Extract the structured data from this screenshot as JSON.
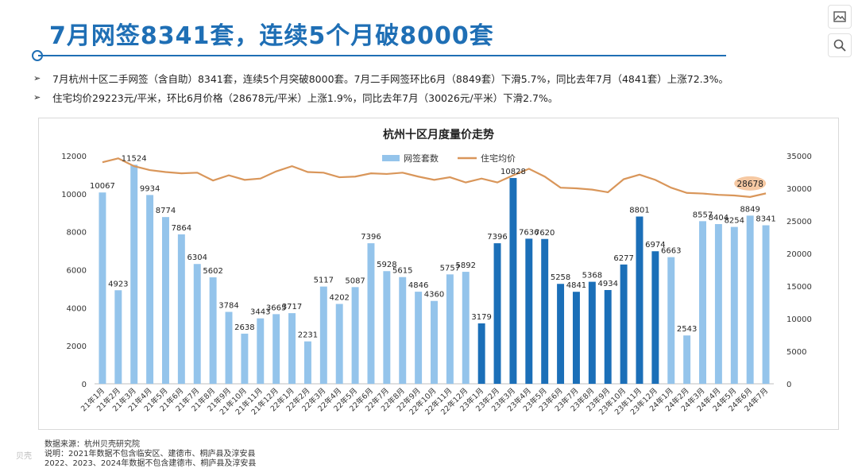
{
  "header": {
    "title": "7月网签8341套，连续5个月破8000套"
  },
  "bullets": [
    "7月杭州十区二手网签（含自助）8341套，连续5个月突破8000套。7月二手网签环比6月（8849套）下滑5.7%，同比去年7月（4841套）上涨72.3%。",
    "住宅均价29223元/平米，环比6月价格（28678元/平米）上涨1.9%，同比去年7月（30026元/平米）下滑2.7%。"
  ],
  "bullet_marker": "➢",
  "footer": {
    "source": "数据来源：杭州贝壳研究院",
    "note1": "说明：2021年数据不包含临安区、建德市、桐庐县及淳安县",
    "note2": "2022、2023、2024年数据不包含建德市、桐庐县及淳安县"
  },
  "watermark": "贝壳",
  "tools": [
    "image-icon",
    "search-icon"
  ],
  "colors": {
    "title": "#1f6fb5",
    "bar_light": "#94c4eb",
    "bar_dark": "#1b6fb8",
    "line": "#d9965a",
    "highlight": "#f6c9a3"
  },
  "chart_data": {
    "type": "bar",
    "title": "杭州十区月度量价走势",
    "categories": [
      "21年1月",
      "21年2月",
      "21年3月",
      "21年4月",
      "21年5月",
      "21年6月",
      "21年7月",
      "21年8月",
      "21年9月",
      "21年10月",
      "21年11月",
      "21年12月",
      "22年1月",
      "22年2月",
      "22年3月",
      "22年4月",
      "22年5月",
      "22年6月",
      "22年7月",
      "22年8月",
      "22年9月",
      "22年10月",
      "22年11月",
      "22年12月",
      "23年1月",
      "23年2月",
      "23年3月",
      "23年4月",
      "23年5月",
      "23年6月",
      "23年7月",
      "23年8月",
      "23年9月",
      "23年10月",
      "23年11月",
      "23年12月",
      "24年1月",
      "24年2月",
      "24年3月",
      "24年4月",
      "24年5月",
      "24年6月",
      "24年7月"
    ],
    "series": [
      {
        "name": "网签套数",
        "axis": "left",
        "dark_from": 24,
        "dark_to": 35,
        "values": [
          10067,
          4923,
          11524,
          9934,
          8774,
          7864,
          6304,
          5602,
          3784,
          2638,
          3443,
          3665,
          3717,
          2231,
          5117,
          4202,
          5087,
          7396,
          5928,
          5615,
          4846,
          4360,
          5757,
          5892,
          3179,
          7396,
          10828,
          7636,
          7620,
          5258,
          4841,
          5368,
          4934,
          6277,
          8801,
          6974,
          6663,
          2543,
          8557,
          8404,
          8254,
          8849,
          8341
        ]
      },
      {
        "name": "住宅均价",
        "axis": "right",
        "values": [
          34000,
          34600,
          33400,
          32800,
          32500,
          32300,
          32400,
          31200,
          32000,
          31300,
          31500,
          32600,
          33400,
          32500,
          32400,
          31700,
          31800,
          32300,
          32200,
          32400,
          31800,
          31300,
          31700,
          30900,
          31500,
          30900,
          32000,
          33000,
          31800,
          30100,
          30000,
          29800,
          29400,
          31400,
          32100,
          31300,
          30100,
          29300,
          29200,
          29000,
          28900,
          28678,
          29223
        ],
        "highlight_label": "28678"
      }
    ],
    "y_left": {
      "min": 0,
      "max": 12000,
      "ticks": [
        0,
        2000,
        4000,
        6000,
        8000,
        10000,
        12000
      ]
    },
    "y_right": {
      "min": 0,
      "max": 35000,
      "ticks": [
        0,
        5000,
        10000,
        15000,
        20000,
        25000,
        30000,
        35000
      ]
    },
    "legend_position": "top-center",
    "grid": false
  }
}
